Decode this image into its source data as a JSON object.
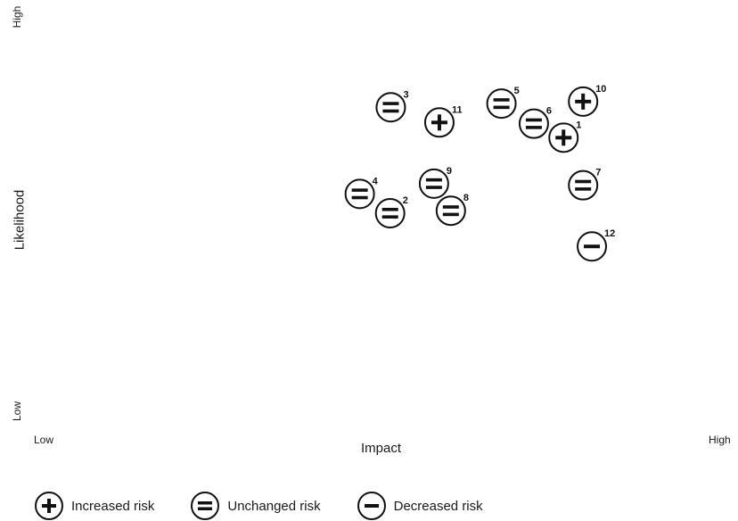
{
  "chart_data": {
    "type": "scatter",
    "xlabel": "Impact",
    "ylabel": "Likelihood",
    "x_axis": {
      "low_label": "Low",
      "high_label": "High"
    },
    "y_axis": {
      "low_label": "Low",
      "high_label": "High"
    },
    "xlim": [
      0,
      100
    ],
    "ylim": [
      0,
      100
    ],
    "grid": false,
    "legend_position": "bottom",
    "legend": [
      {
        "symbol": "plus",
        "label": "Increased risk",
        "icon": "plus-circle-icon"
      },
      {
        "symbol": "equals",
        "label": "Unchanged risk",
        "icon": "equals-circle-icon"
      },
      {
        "symbol": "minus",
        "label": "Decreased risk",
        "icon": "minus-circle-icon"
      }
    ],
    "points": [
      {
        "id": "1",
        "x": 78.5,
        "y": 70.8,
        "symbol": "plus"
      },
      {
        "id": "2",
        "x": 52.8,
        "y": 52.4,
        "symbol": "equals"
      },
      {
        "id": "3",
        "x": 52.9,
        "y": 78.2,
        "symbol": "equals"
      },
      {
        "id": "4",
        "x": 48.3,
        "y": 57.1,
        "symbol": "equals"
      },
      {
        "id": "5",
        "x": 69.3,
        "y": 79.1,
        "symbol": "equals"
      },
      {
        "id": "6",
        "x": 74.1,
        "y": 74.2,
        "symbol": "equals"
      },
      {
        "id": "7",
        "x": 81.4,
        "y": 59.2,
        "symbol": "equals"
      },
      {
        "id": "8",
        "x": 61.8,
        "y": 53.0,
        "symbol": "equals"
      },
      {
        "id": "9",
        "x": 59.3,
        "y": 59.6,
        "symbol": "equals"
      },
      {
        "id": "10",
        "x": 81.4,
        "y": 79.6,
        "symbol": "plus"
      },
      {
        "id": "11",
        "x": 60.1,
        "y": 74.5,
        "symbol": "plus"
      },
      {
        "id": "12",
        "x": 82.7,
        "y": 44.3,
        "symbol": "minus"
      }
    ]
  }
}
